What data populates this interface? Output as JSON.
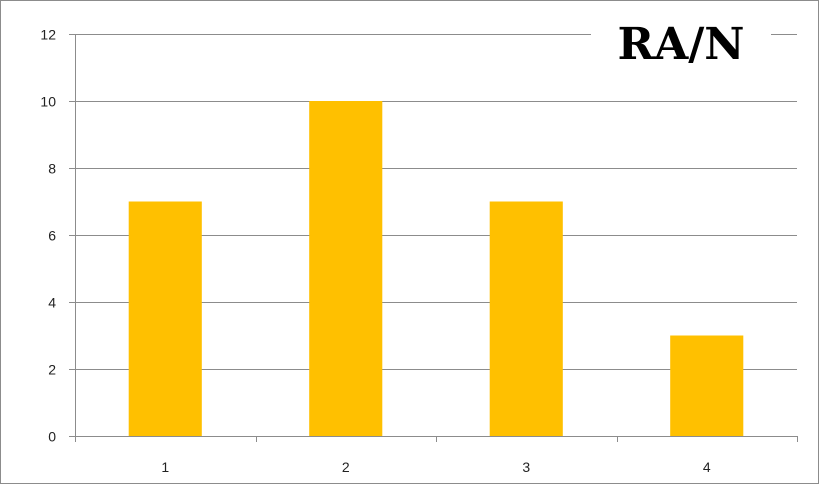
{
  "chart_data": {
    "type": "bar",
    "title": "RA/N",
    "categories": [
      "1",
      "2",
      "3",
      "4"
    ],
    "values": [
      7,
      10,
      7,
      3
    ],
    "xlabel": "",
    "ylabel": "",
    "ylim": [
      0,
      12
    ],
    "yticks": [
      0,
      2,
      4,
      6,
      8,
      10,
      12
    ],
    "grid": true,
    "legend": "none",
    "bar_color": "#FFC000",
    "grid_color": "#8c8c8c"
  }
}
